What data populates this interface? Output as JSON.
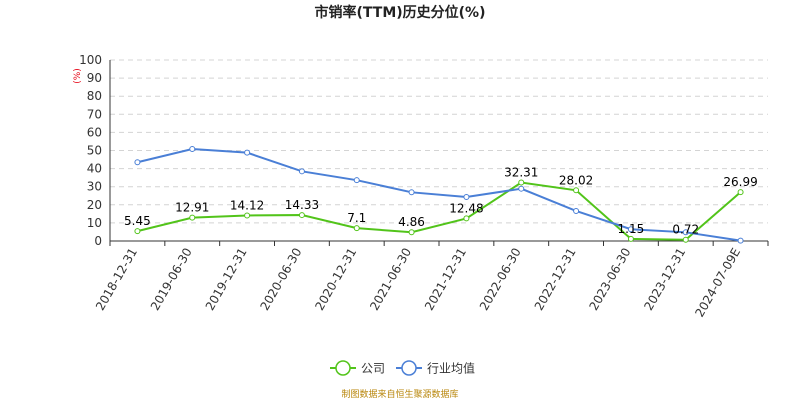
{
  "chart_data": {
    "type": "line",
    "title": "市销率(TTM)历史分位(%)",
    "ylabel": "(%)",
    "ylim": [
      0,
      100
    ],
    "yticks": [
      0,
      10,
      20,
      30,
      40,
      50,
      60,
      70,
      80,
      90,
      100
    ],
    "grid": true,
    "legend_placement": "bottom-center",
    "categories": [
      "2018-12-31",
      "2019-06-30",
      "2019-12-31",
      "2020-06-30",
      "2020-12-31",
      "2021-06-30",
      "2021-12-31",
      "2022-06-30",
      "2022-12-31",
      "2023-06-30",
      "2023-12-31",
      "2024-07-09E"
    ],
    "series": [
      {
        "name": "公司",
        "color": "#52c41a",
        "values": [
          5.45,
          12.91,
          14.12,
          14.33,
          7.1,
          4.86,
          12.48,
          32.31,
          28.02,
          1.15,
          0.72,
          26.99
        ],
        "labels": [
          "5.45",
          "12.91",
          "14.12",
          "14.33",
          "7.1",
          "4.86",
          "12.48",
          "32.31",
          "28.02",
          "1.15",
          "0.72",
          "26.99"
        ]
      },
      {
        "name": "行业均值",
        "color": "#4a7fd6",
        "values": [
          43.5,
          50.8,
          48.8,
          38.5,
          33.6,
          26.9,
          24.3,
          28.9,
          16.6,
          6.5,
          4.8,
          0.2
        ]
      }
    ],
    "source": "制图数据来自恒生聚源数据库"
  }
}
